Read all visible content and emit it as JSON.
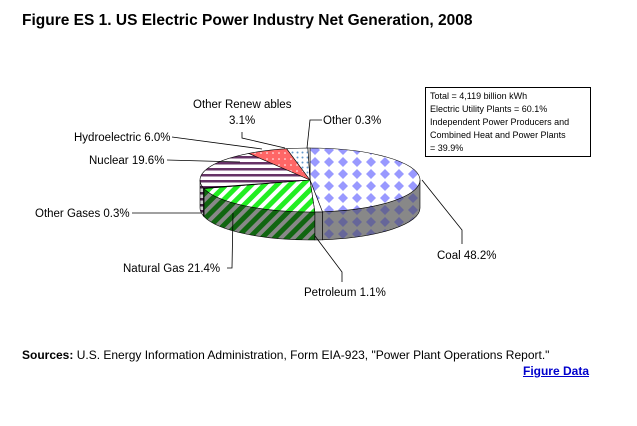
{
  "title": "Figure ES 1. US Electric Power Industry Net Generation, 2008",
  "chart_data": {
    "type": "pie",
    "title": "Figure ES 1. US Electric Power Industry Net Generation, 2008",
    "categories": [
      "Coal",
      "Petroleum",
      "Natural Gas",
      "Other Gases",
      "Nuclear",
      "Hydroelectric",
      "Other Renewables",
      "Other"
    ],
    "values": [
      48.2,
      1.1,
      21.4,
      0.3,
      19.6,
      6.0,
      3.1,
      0.3
    ],
    "labels": [
      "Coal 48.2%",
      "Petroleum 1.1%",
      "Natural Gas 21.4%",
      "Other Gases 0.3%",
      "Nuclear 19.6%",
      "Hydroelectric 6.0%",
      "Other Renew ables",
      "Other 0.3%"
    ],
    "other_renewables_value_label": "3.1%",
    "colors": [
      "#9999ff",
      "#ffffff",
      "#00ee00",
      "#cccccc",
      "#663366",
      "#ff6666",
      "#99ccff",
      "#ffffff"
    ],
    "side_colors": [
      "#666699",
      "#888888",
      "#006600",
      "#888888",
      "#442244",
      "#aa3333",
      "#6699cc",
      "#888888"
    ]
  },
  "note": [
    "Total = 4,119 billion kWh",
    "Electric Utility Plants = 60.1%",
    "Independent Power Producers and",
    "Combined Heat and Power Plants",
    "= 39.9%"
  ],
  "sources": {
    "label": "Sources:",
    "text": " U.S. Energy Information Administration, Form EIA-923, \"Power Plant Operations Report.\""
  },
  "figure_data_link": "Figure Data"
}
